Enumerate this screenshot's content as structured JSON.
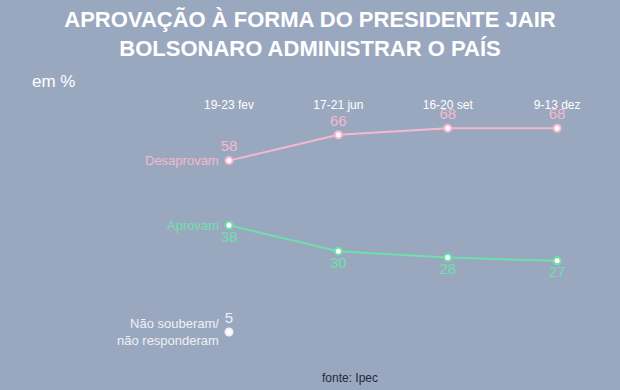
{
  "chart_data": {
    "type": "line",
    "title": "APROVAÇÃO À FORMA DO PRESIDENTE JAIR\nBOLSONARO ADMINISTRAR O PAÍS",
    "unit": "em %",
    "source": "fonte: Ipec",
    "categories": [
      "19-23 fev",
      "17-21 jun",
      "16-20 set",
      "9-13 dez"
    ],
    "series": [
      {
        "name": "Desaprovam",
        "color": "#f6b8cc",
        "values": [
          58,
          66,
          68,
          68
        ]
      },
      {
        "name": "Aprovam",
        "color": "#6fe0ac",
        "values": [
          38,
          30,
          28,
          27
        ]
      },
      {
        "name": "Não souberam/\nnão responderam",
        "color": "#eef0f5",
        "values": [
          5,
          null,
          null,
          null
        ]
      }
    ],
    "data_labels": true,
    "tick_labels": "x",
    "grid": false,
    "marker": "circle"
  }
}
